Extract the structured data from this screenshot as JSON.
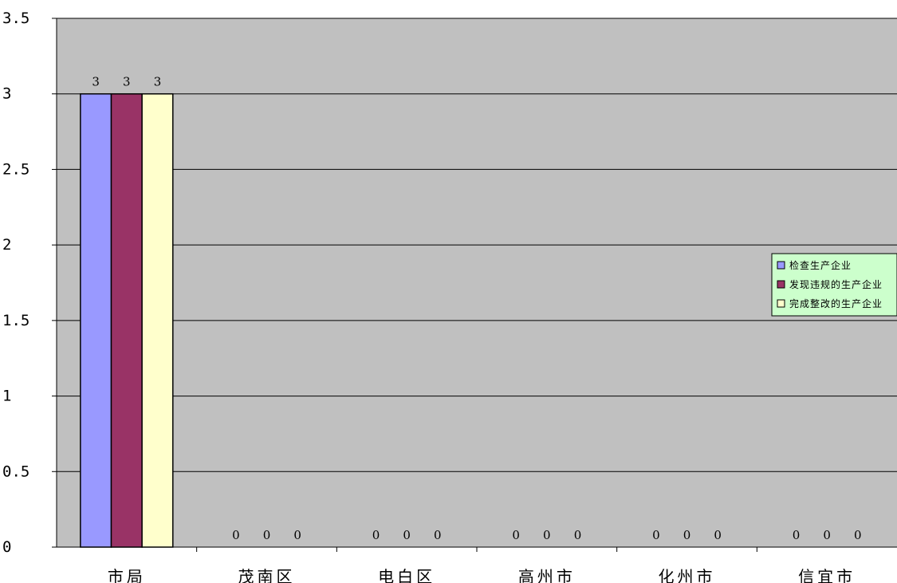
{
  "chart_data": {
    "type": "bar",
    "categories": [
      "市局",
      "茂南区",
      "电白区",
      "高州市",
      "化州市",
      "信宜市"
    ],
    "series": [
      {
        "name": "检查生产企业",
        "values": [
          3,
          0,
          0,
          0,
          0,
          0
        ],
        "color": "#9999FF"
      },
      {
        "name": "发现违规的生产企业",
        "values": [
          3,
          0,
          0,
          0,
          0,
          0
        ],
        "color": "#993366"
      },
      {
        "name": "完成整改的生产企业",
        "values": [
          3,
          0,
          0,
          0,
          0,
          0
        ],
        "color": "#FFFFCC"
      }
    ],
    "ylim": [
      0,
      3.5
    ],
    "yticks": [
      0,
      0.5,
      1,
      1.5,
      2,
      2.5,
      3,
      3.5
    ],
    "ytick_labels": [
      "0",
      "0.5",
      "1",
      "1.5",
      "2",
      "2.5",
      "3",
      "3.5"
    ],
    "grid": true,
    "plot_background": "#C0C0C0",
    "legend_background": "#CCFFCC",
    "legend_position": "right",
    "data_labels": true,
    "title": "",
    "xlabel": "",
    "ylabel": ""
  }
}
